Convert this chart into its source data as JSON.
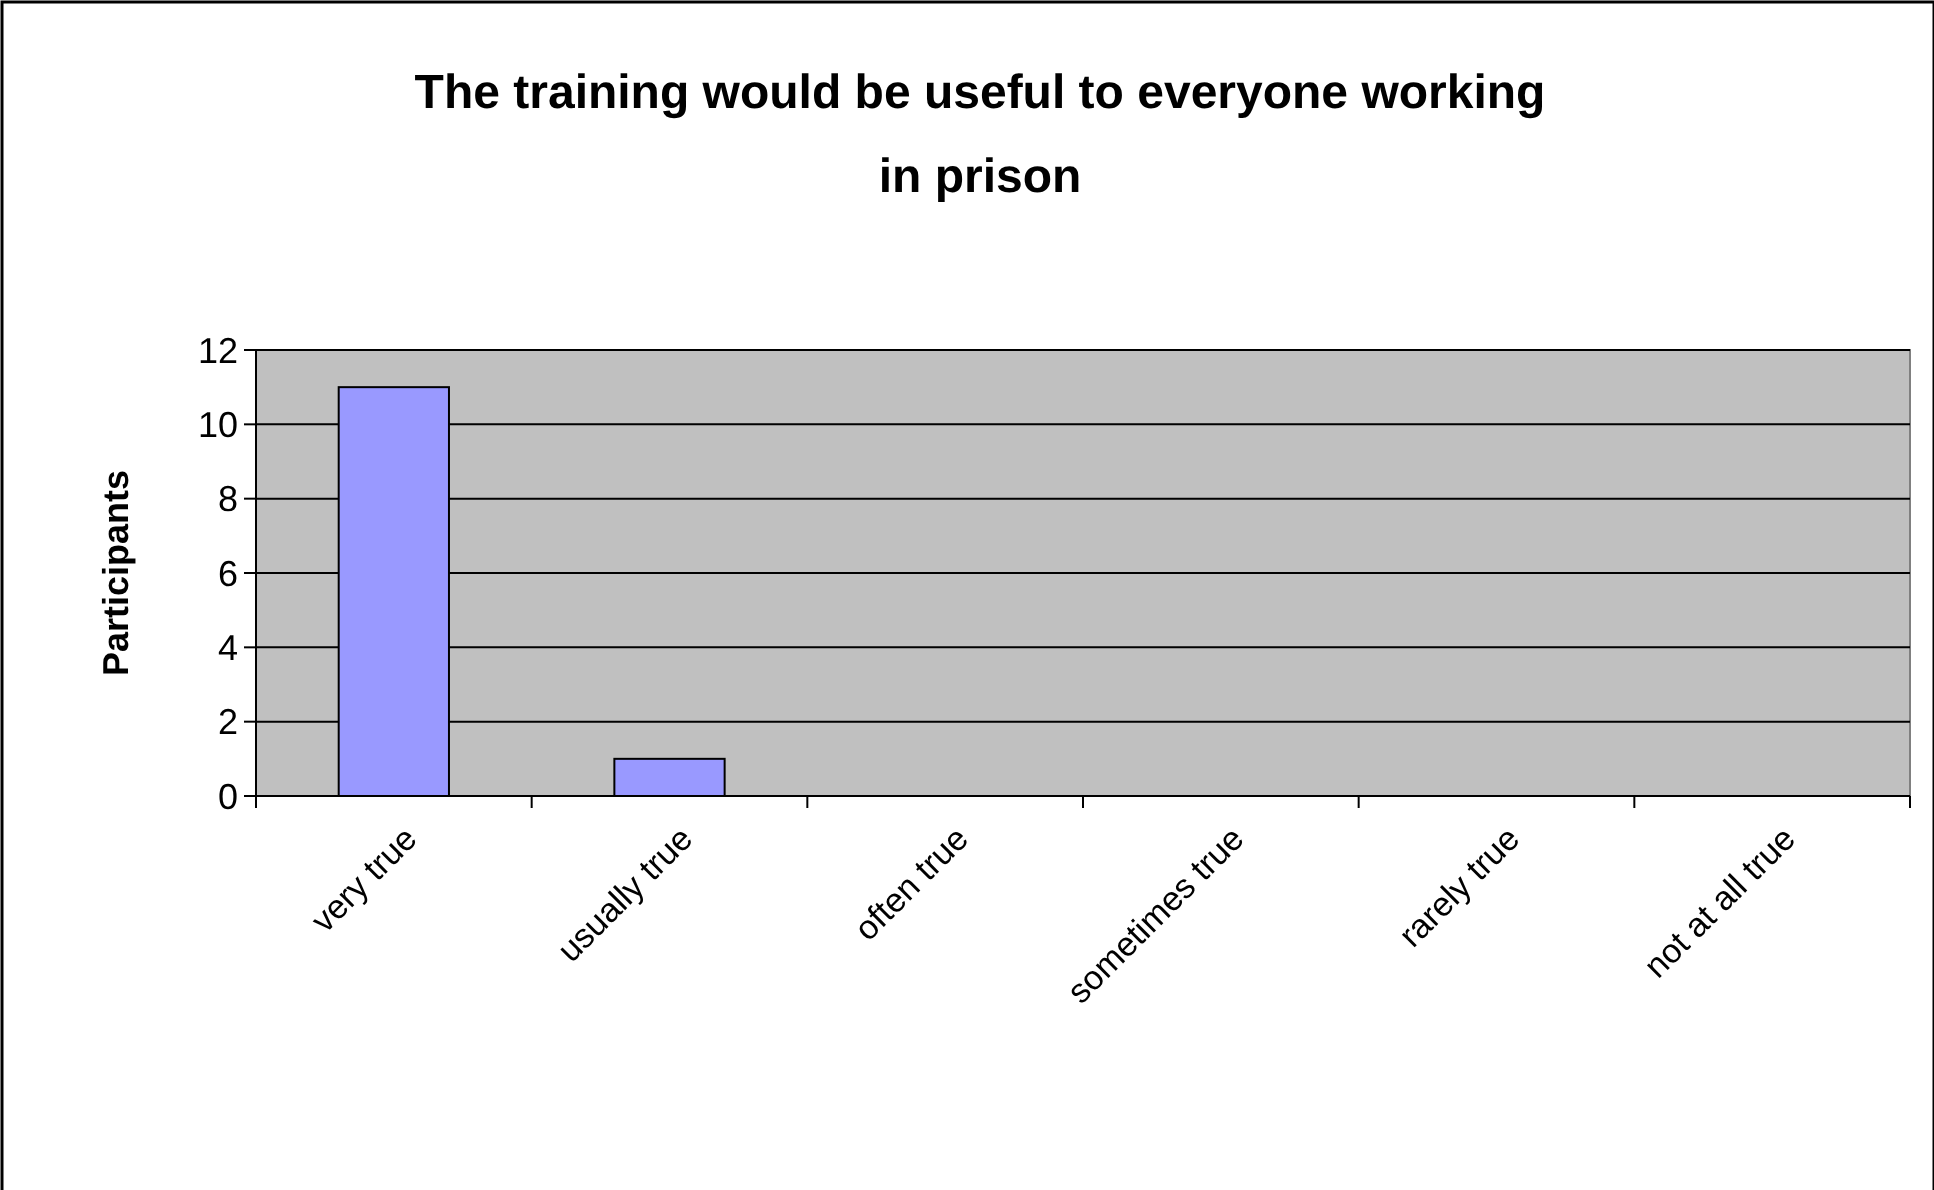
{
  "chart_data": {
    "type": "bar",
    "title": "The training would be useful to everyone working in prison",
    "ylabel": "Participants",
    "categories": [
      "very true",
      "usually true",
      "often true",
      "sometimes true",
      "rarely true",
      "not at all true"
    ],
    "values": [
      11,
      1,
      0,
      0,
      0,
      0
    ],
    "color": "#9999ff",
    "ylim": [
      0,
      12
    ],
    "yticks": [
      0,
      2,
      4,
      6,
      8,
      10,
      12
    ],
    "grid": "y"
  }
}
